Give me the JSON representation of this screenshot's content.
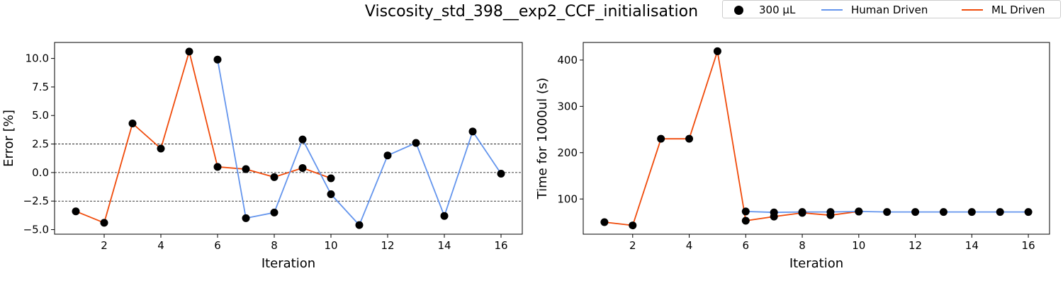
{
  "title": "Viscosity_std_398__exp2_CCF_initialisation",
  "legend": {
    "marker_label": "300 µL",
    "human_label": "Human Driven",
    "ml_label": "ML Driven"
  },
  "colors": {
    "human": "#6495ed",
    "ml": "#f04a0a",
    "marker": "#000000",
    "ref_lines": "#000000"
  },
  "chart_data": [
    {
      "type": "line",
      "xlabel": "Iteration",
      "ylabel": "Error [%]",
      "xlim": [
        0.25,
        16.75
      ],
      "ylim": [
        -5.4,
        11.4
      ],
      "xticks": [
        2,
        4,
        6,
        8,
        10,
        12,
        14,
        16
      ],
      "yticks": [
        -5.0,
        -2.5,
        0.0,
        2.5,
        5.0,
        7.5,
        10.0
      ],
      "ytick_labels": [
        "−5.0",
        "−2.5",
        "0.0",
        "2.5",
        "5.0",
        "7.5",
        "10.0"
      ],
      "reference_lines": [
        -2.5,
        0.0,
        2.5
      ],
      "grid": false,
      "series": [
        {
          "name": "ML Driven",
          "x": [
            1,
            2,
            3,
            4,
            5,
            6,
            7,
            8,
            9,
            10
          ],
          "y": [
            -3.4,
            -4.4,
            4.3,
            2.1,
            10.6,
            0.5,
            0.3,
            -0.4,
            0.4,
            -0.5
          ]
        },
        {
          "name": "Human Driven",
          "x": [
            6,
            7,
            8,
            9,
            10,
            11,
            12,
            13,
            14,
            15,
            16
          ],
          "y": [
            9.9,
            -4.0,
            -3.5,
            2.9,
            -1.9,
            -4.6,
            1.5,
            2.6,
            -3.8,
            3.6,
            -0.1
          ]
        }
      ],
      "markers": {
        "name": "300 µL",
        "x": [
          1,
          2,
          3,
          4,
          5,
          6,
          6,
          7,
          7,
          8,
          8,
          9,
          9,
          10,
          10,
          11,
          12,
          13,
          14,
          15,
          16
        ],
        "y": [
          -3.4,
          -4.4,
          4.3,
          2.1,
          10.6,
          0.5,
          9.9,
          0.3,
          -4.0,
          -0.4,
          -3.5,
          0.4,
          2.9,
          -0.5,
          -1.9,
          -4.6,
          1.5,
          2.6,
          -3.8,
          3.6,
          -0.1
        ]
      }
    },
    {
      "type": "line",
      "xlabel": "Iteration",
      "ylabel": "Time for 1000ul (s)",
      "xlim": [
        0.25,
        16.75
      ],
      "ylim": [
        24,
        438
      ],
      "xticks": [
        2,
        4,
        6,
        8,
        10,
        12,
        14,
        16
      ],
      "yticks": [
        100,
        200,
        300,
        400
      ],
      "ytick_labels": [
        "100",
        "200",
        "300",
        "400"
      ],
      "reference_lines": [],
      "grid": false,
      "series": [
        {
          "name": "ML Driven",
          "x": [
            1,
            2,
            3,
            4,
            5,
            6,
            7,
            8,
            9,
            10
          ],
          "y": [
            50,
            43,
            230,
            230,
            419,
            53,
            62,
            70,
            65,
            73
          ]
        },
        {
          "name": "Human Driven",
          "x": [
            6,
            7,
            8,
            9,
            10,
            11,
            12,
            13,
            14,
            15,
            16
          ],
          "y": [
            73,
            71,
            72,
            72,
            73,
            72,
            72,
            72,
            72,
            72,
            72
          ]
        }
      ],
      "markers": {
        "name": "300 µL",
        "x": [
          1,
          2,
          3,
          4,
          5,
          6,
          6,
          7,
          7,
          8,
          8,
          9,
          9,
          10,
          10,
          11,
          12,
          13,
          14,
          15,
          16
        ],
        "y": [
          50,
          43,
          230,
          230,
          419,
          53,
          73,
          62,
          71,
          70,
          72,
          65,
          72,
          73,
          73,
          72,
          72,
          72,
          72,
          72,
          72
        ]
      }
    }
  ]
}
